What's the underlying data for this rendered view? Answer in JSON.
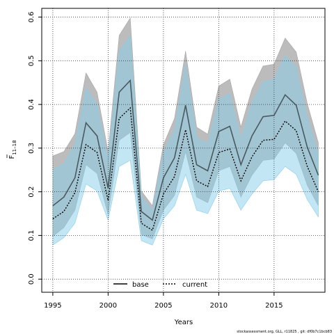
{
  "chart_data": {
    "type": "area",
    "xlabel": "Years",
    "ylabel_main": "F",
    "ylabel_sub": "11–18",
    "xlim": [
      1994,
      2019.6
    ],
    "ylim": [
      -0.03,
      0.62
    ],
    "x_ticks": [
      1995,
      2000,
      2005,
      2010,
      2015
    ],
    "y_ticks": [
      0.0,
      0.1,
      0.2,
      0.3,
      0.4,
      0.5,
      0.6
    ],
    "y_tick_labels": [
      "0.0",
      "0.1",
      "0.2",
      "0.3",
      "0.4",
      "0.5",
      "0.6"
    ],
    "grid": true,
    "legend_position": "bottom-center",
    "x": [
      1995,
      1996,
      1997,
      1998,
      1999,
      2000,
      2001,
      2002,
      2003,
      2004,
      2005,
      2006,
      2007,
      2008,
      2009,
      2010,
      2011,
      2012,
      2013,
      2014,
      2015,
      2016,
      2017,
      2018,
      2019
    ],
    "series": [
      {
        "name": "base",
        "line_style": "solid",
        "line_color": "#000000",
        "band_color": "#a6a6a6",
        "values": [
          0.168,
          0.188,
          0.232,
          0.358,
          0.328,
          0.208,
          0.428,
          0.455,
          0.155,
          0.135,
          0.232,
          0.278,
          0.398,
          0.262,
          0.248,
          0.338,
          0.35,
          0.262,
          0.328,
          0.372,
          0.375,
          0.422,
          0.398,
          0.302,
          0.238
        ],
        "upper": [
          0.282,
          0.292,
          0.333,
          0.472,
          0.428,
          0.292,
          0.558,
          0.598,
          0.202,
          0.168,
          0.308,
          0.368,
          0.522,
          0.348,
          0.332,
          0.442,
          0.458,
          0.348,
          0.435,
          0.488,
          0.492,
          0.552,
          0.52,
          0.402,
          0.312
        ],
        "lower": [
          0.098,
          0.118,
          0.158,
          0.262,
          0.242,
          0.148,
          0.318,
          0.336,
          0.102,
          0.092,
          0.158,
          0.192,
          0.292,
          0.188,
          0.175,
          0.248,
          0.258,
          0.188,
          0.238,
          0.272,
          0.275,
          0.312,
          0.288,
          0.215,
          0.168
        ]
      },
      {
        "name": "current",
        "line_style": "dotted",
        "line_color": "#000000",
        "band_color": "#87ceeb",
        "values": [
          0.138,
          0.155,
          0.198,
          0.308,
          0.29,
          0.18,
          0.368,
          0.392,
          0.128,
          0.112,
          0.195,
          0.235,
          0.342,
          0.225,
          0.212,
          0.29,
          0.298,
          0.225,
          0.28,
          0.318,
          0.32,
          0.362,
          0.34,
          0.258,
          0.2
        ],
        "upper": [
          0.25,
          0.265,
          0.308,
          0.438,
          0.4,
          0.275,
          0.522,
          0.558,
          0.19,
          0.158,
          0.29,
          0.342,
          0.492,
          0.325,
          0.31,
          0.412,
          0.425,
          0.322,
          0.405,
          0.452,
          0.458,
          0.512,
          0.485,
          0.372,
          0.288
        ],
        "lower": [
          0.078,
          0.095,
          0.128,
          0.218,
          0.202,
          0.135,
          0.258,
          0.272,
          0.088,
          0.078,
          0.138,
          0.168,
          0.24,
          0.158,
          0.15,
          0.202,
          0.208,
          0.158,
          0.195,
          0.225,
          0.228,
          0.258,
          0.24,
          0.182,
          0.142
        ]
      }
    ],
    "footnote": "stockassessment.org, GLL, r11825 , git: df0b7c1bcb83"
  }
}
